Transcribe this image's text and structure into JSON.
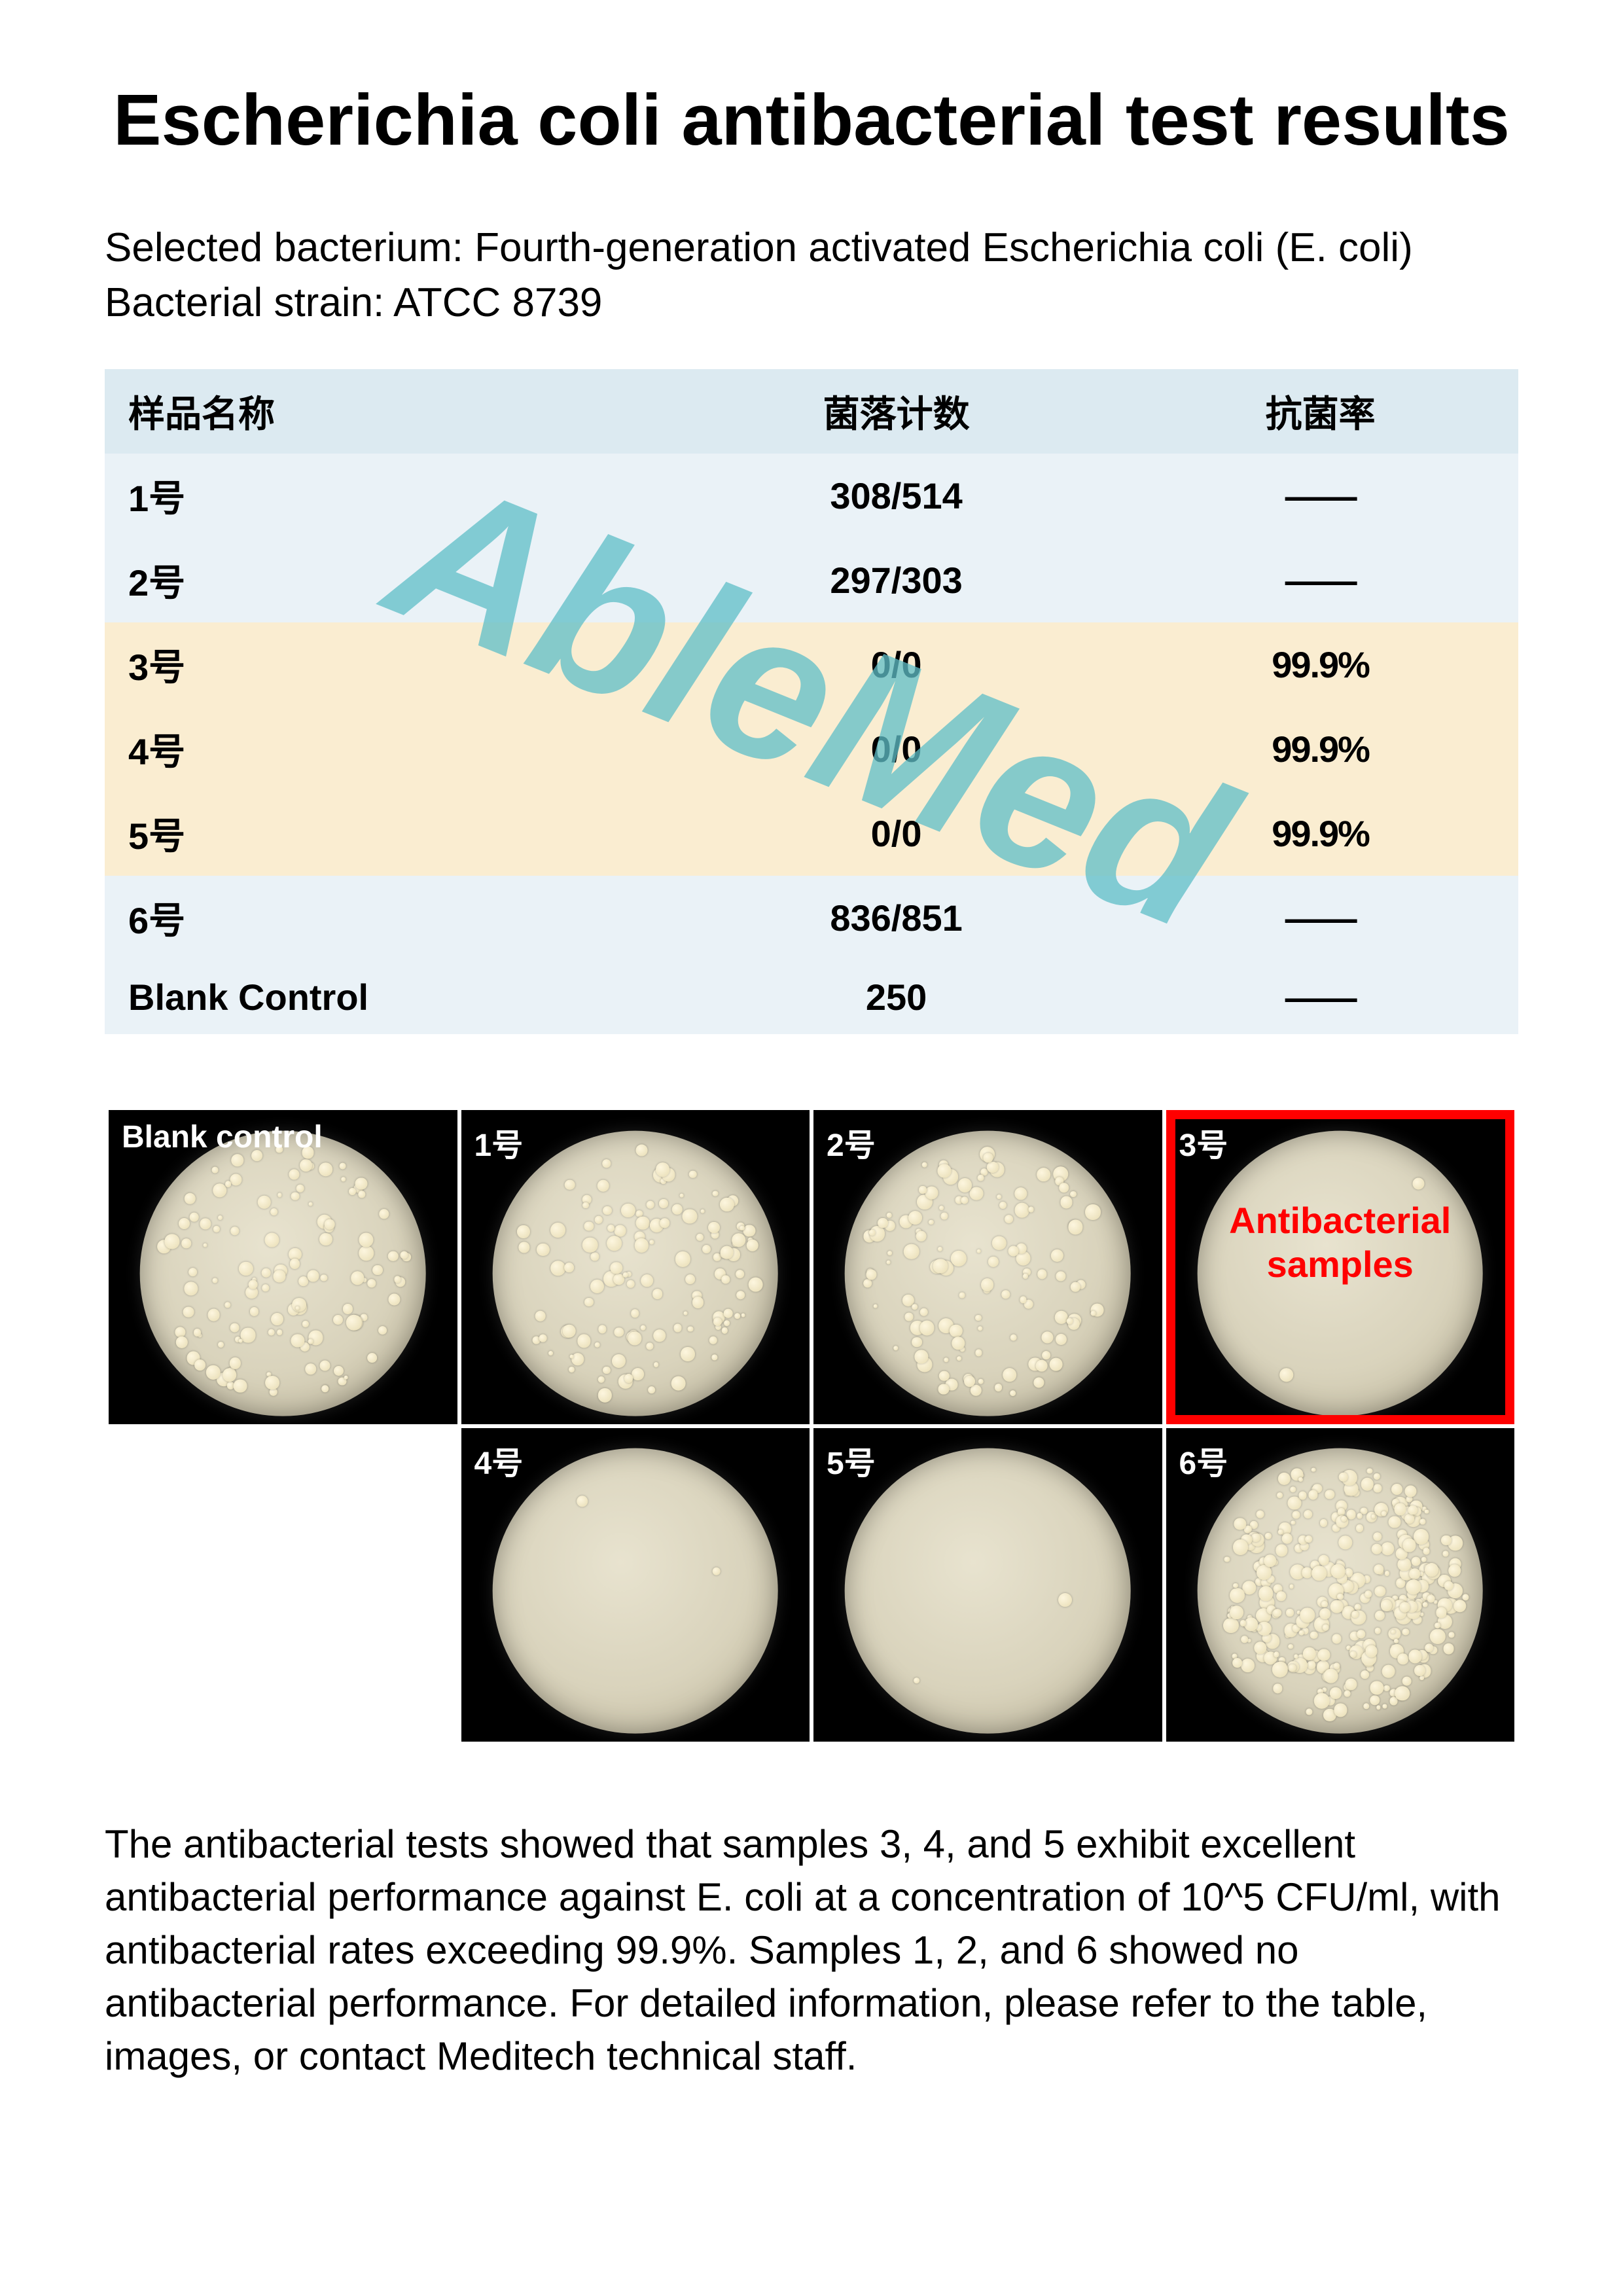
{
  "title": "Escherichia coli antibacterial test results",
  "subtitle_line1": "Selected bacterium: Fourth-generation activated Escherichia coli (E. coli)",
  "subtitle_line2": "Bacterial strain: ATCC 8739",
  "watermark": "AbleMed",
  "table": {
    "headers": {
      "c1": "样品名称",
      "c2": "菌落计数",
      "c3": "抗菌率"
    },
    "rows": [
      {
        "name": "1号",
        "count": "308/514",
        "rate": "——",
        "cls": "blue"
      },
      {
        "name": "2号",
        "count": "297/303",
        "rate": "——",
        "cls": "blue"
      },
      {
        "name": "3号",
        "count": "0/0",
        "rate": "99.9%",
        "cls": "beige"
      },
      {
        "name": "4号",
        "count": "0/0",
        "rate": "99.9%",
        "cls": "beige"
      },
      {
        "name": "5号",
        "count": "0/0",
        "rate": "99.9%",
        "cls": "beige"
      },
      {
        "name": "6号",
        "count": "836/851",
        "rate": "——",
        "cls": "blue"
      },
      {
        "name": "Blank Control",
        "count": "250",
        "rate": "——",
        "cls": "blue"
      }
    ]
  },
  "plates": {
    "row1": [
      {
        "label": "Blank control",
        "density": "medium"
      },
      {
        "label": "1号",
        "density": "medium"
      },
      {
        "label": "2号",
        "density": "medium"
      },
      {
        "label": "3号",
        "density": "none",
        "highlight": true
      }
    ],
    "row2": [
      {
        "label": "",
        "empty": true
      },
      {
        "label": "4号",
        "density": "none"
      },
      {
        "label": "5号",
        "density": "none"
      },
      {
        "label": "6号",
        "density": "heavy"
      }
    ],
    "annotation": "Antibacterial\nsamples"
  },
  "bottom": "The antibacterial tests showed that samples 3, 4, and 5 exhibit excellent antibacterial  performance against E. coli at a concentration of 10^5 CFU/ml, with antibacterial rates exceeding 99.9%. Samples 1, 2, and 6 showed no antibacterial performance. For detailed information, please refer to the table, images, or contact Meditech technical staff.",
  "colors": {
    "header_bg": "#dceaf1",
    "row_blue": "#eaf2f7",
    "row_beige": "#faedd1",
    "watermark": "#5fbfc8",
    "highlight": "#ff0000"
  }
}
